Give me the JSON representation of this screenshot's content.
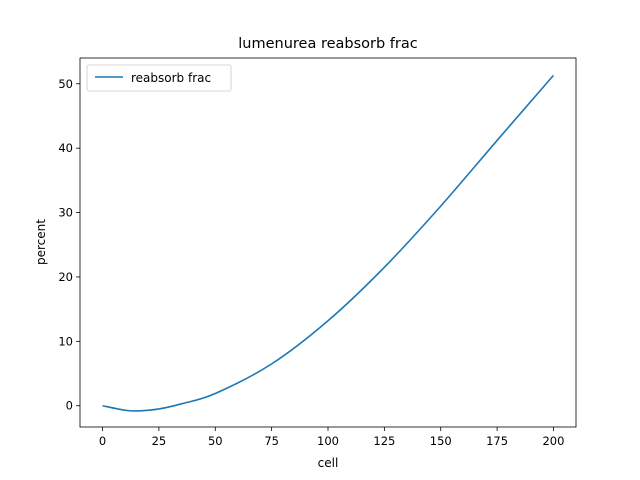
{
  "chart_data": {
    "type": "line",
    "title": "lumenurea reabsorb frac",
    "xlabel": "cell",
    "ylabel": "percent",
    "xlim": [
      -10,
      210
    ],
    "ylim": [
      -3.3,
      54
    ],
    "xticks": [
      0,
      25,
      50,
      75,
      100,
      125,
      150,
      175,
      200
    ],
    "yticks": [
      0,
      10,
      20,
      30,
      40,
      50
    ],
    "grid": false,
    "legend": "top-left",
    "series": [
      {
        "name": "reabsorb frac",
        "color": "#1f77b4",
        "x": [
          0,
          10,
          16,
          25,
          35,
          50,
          75,
          100,
          125,
          150,
          175,
          200
        ],
        "y": [
          0,
          -0.7,
          -0.8,
          -0.5,
          0.3,
          1.9,
          6.5,
          13.2,
          21.5,
          31.0,
          41.2,
          51.3
        ]
      }
    ]
  }
}
